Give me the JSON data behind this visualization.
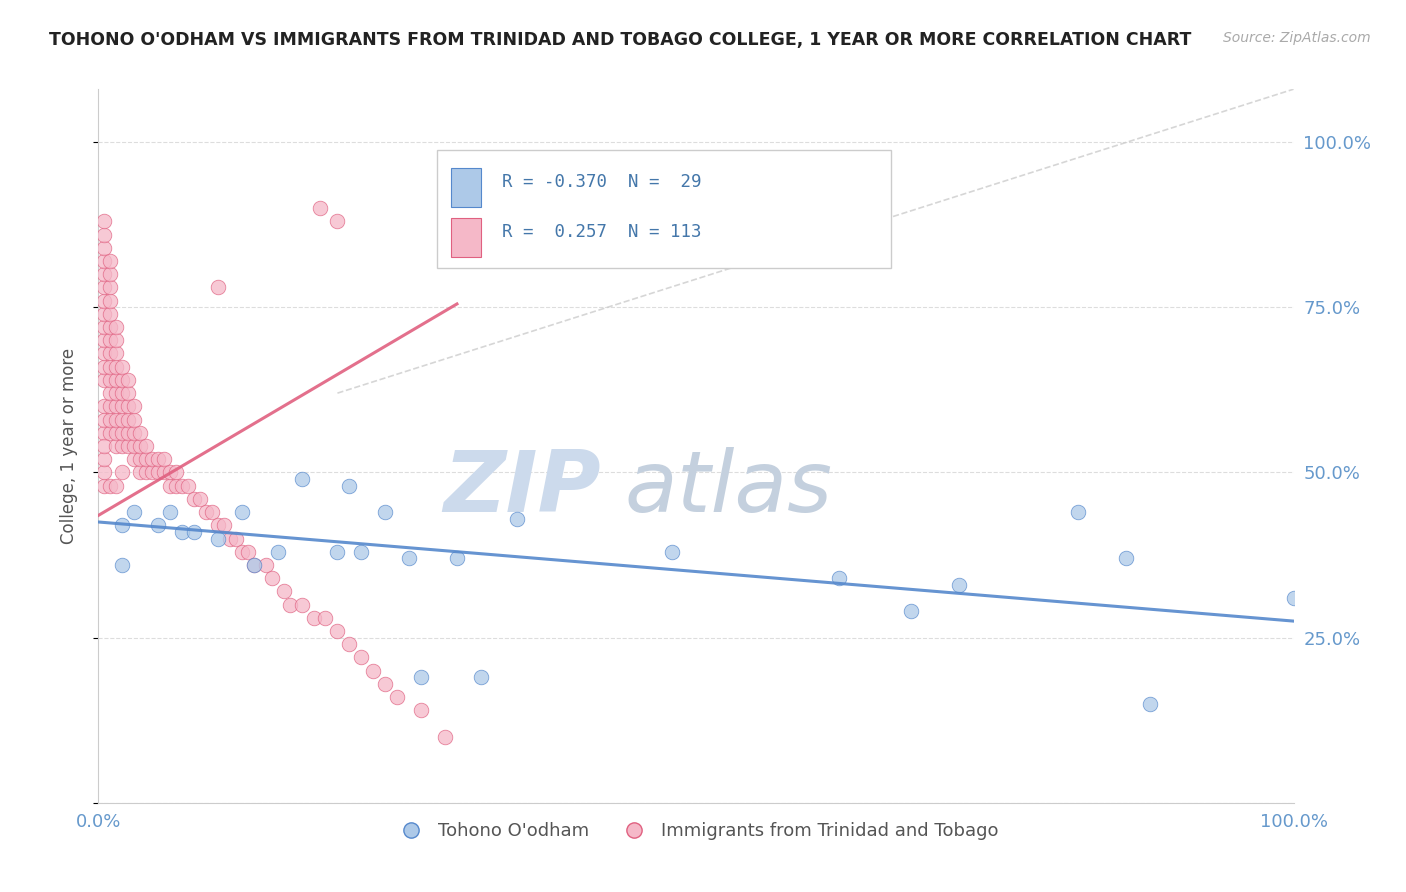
{
  "title": "TOHONO O'ODHAM VS IMMIGRANTS FROM TRINIDAD AND TOBAGO COLLEGE, 1 YEAR OR MORE CORRELATION CHART",
  "source": "Source: ZipAtlas.com",
  "ylabel": "College, 1 year or more",
  "legend1_label": "R = -0.370  N =  29",
  "legend2_label": "R =  0.257  N = 113",
  "legend_bottom1": "Tohono O'odham",
  "legend_bottom2": "Immigrants from Trinidad and Tobago",
  "blue_scatter_color": "#adc9e8",
  "pink_scatter_color": "#f5b8c8",
  "blue_line_color": "#5588cc",
  "pink_line_color": "#e06080",
  "dashed_line_color": "#cccccc",
  "title_color": "#222222",
  "source_color": "#aaaaaa",
  "axis_tick_color": "#6699cc",
  "axis_label_color": "#555555",
  "watermark_zip_color": "#c8d8ea",
  "watermark_atlas_color": "#c8d4e0",
  "grid_color": "#dddddd",
  "legend_border_color": "#cccccc",
  "legend_text_color": "#4477aa",
  "background_color": "#ffffff",
  "blue_x": [
    0.02,
    0.02,
    0.03,
    0.05,
    0.06,
    0.07,
    0.08,
    0.1,
    0.12,
    0.13,
    0.15,
    0.17,
    0.2,
    0.21,
    0.22,
    0.24,
    0.26,
    0.27,
    0.3,
    0.32,
    0.35,
    0.48,
    0.62,
    0.68,
    0.72,
    0.82,
    0.86,
    0.88,
    1.0
  ],
  "blue_y": [
    0.42,
    0.36,
    0.44,
    0.42,
    0.44,
    0.41,
    0.41,
    0.4,
    0.44,
    0.36,
    0.38,
    0.49,
    0.38,
    0.48,
    0.38,
    0.44,
    0.37,
    0.19,
    0.37,
    0.19,
    0.43,
    0.38,
    0.34,
    0.29,
    0.33,
    0.44,
    0.37,
    0.15,
    0.31
  ],
  "pink_x": [
    0.005,
    0.005,
    0.005,
    0.005,
    0.005,
    0.005,
    0.005,
    0.005,
    0.005,
    0.005,
    0.005,
    0.005,
    0.005,
    0.005,
    0.005,
    0.005,
    0.005,
    0.005,
    0.005,
    0.005,
    0.01,
    0.01,
    0.01,
    0.01,
    0.01,
    0.01,
    0.01,
    0.01,
    0.01,
    0.01,
    0.01,
    0.01,
    0.01,
    0.01,
    0.01,
    0.015,
    0.015,
    0.015,
    0.015,
    0.015,
    0.015,
    0.015,
    0.015,
    0.015,
    0.015,
    0.015,
    0.02,
    0.02,
    0.02,
    0.02,
    0.02,
    0.02,
    0.02,
    0.02,
    0.025,
    0.025,
    0.025,
    0.025,
    0.025,
    0.025,
    0.03,
    0.03,
    0.03,
    0.03,
    0.03,
    0.035,
    0.035,
    0.035,
    0.035,
    0.04,
    0.04,
    0.04,
    0.045,
    0.045,
    0.05,
    0.05,
    0.055,
    0.055,
    0.06,
    0.06,
    0.065,
    0.065,
    0.07,
    0.075,
    0.08,
    0.085,
    0.09,
    0.095,
    0.1,
    0.105,
    0.11,
    0.115,
    0.12,
    0.125,
    0.13,
    0.14,
    0.145,
    0.155,
    0.16,
    0.17,
    0.18,
    0.19,
    0.2,
    0.21,
    0.22,
    0.23,
    0.24,
    0.25,
    0.27,
    0.29,
    0.1,
    0.185,
    0.2
  ],
  "pink_y": [
    0.56,
    0.6,
    0.64,
    0.66,
    0.68,
    0.7,
    0.72,
    0.74,
    0.76,
    0.78,
    0.8,
    0.82,
    0.84,
    0.86,
    0.88,
    0.48,
    0.5,
    0.52,
    0.54,
    0.58,
    0.56,
    0.58,
    0.6,
    0.62,
    0.64,
    0.66,
    0.68,
    0.7,
    0.72,
    0.74,
    0.76,
    0.78,
    0.8,
    0.82,
    0.48,
    0.54,
    0.56,
    0.58,
    0.6,
    0.62,
    0.64,
    0.66,
    0.68,
    0.7,
    0.72,
    0.48,
    0.54,
    0.56,
    0.58,
    0.6,
    0.62,
    0.64,
    0.66,
    0.5,
    0.54,
    0.56,
    0.58,
    0.6,
    0.62,
    0.64,
    0.52,
    0.54,
    0.56,
    0.58,
    0.6,
    0.5,
    0.52,
    0.54,
    0.56,
    0.5,
    0.52,
    0.54,
    0.5,
    0.52,
    0.5,
    0.52,
    0.5,
    0.52,
    0.48,
    0.5,
    0.48,
    0.5,
    0.48,
    0.48,
    0.46,
    0.46,
    0.44,
    0.44,
    0.42,
    0.42,
    0.4,
    0.4,
    0.38,
    0.38,
    0.36,
    0.36,
    0.34,
    0.32,
    0.3,
    0.3,
    0.28,
    0.28,
    0.26,
    0.24,
    0.22,
    0.2,
    0.18,
    0.16,
    0.14,
    0.1,
    0.78,
    0.9,
    0.88
  ],
  "blue_trend": [
    0.0,
    1.0,
    0.425,
    0.275
  ],
  "pink_trend": [
    0.0,
    0.3,
    0.435,
    0.755
  ],
  "xlim": [
    0.0,
    1.0
  ],
  "ylim": [
    0.0,
    1.08
  ],
  "yticks": [
    0.0,
    0.25,
    0.5,
    0.75,
    1.0
  ],
  "ytick_labels": [
    "",
    "25.0%",
    "50.0%",
    "75.0%",
    "100.0%"
  ],
  "xticks": [
    0.0,
    1.0
  ],
  "xtick_labels": [
    "0.0%",
    "100.0%"
  ]
}
